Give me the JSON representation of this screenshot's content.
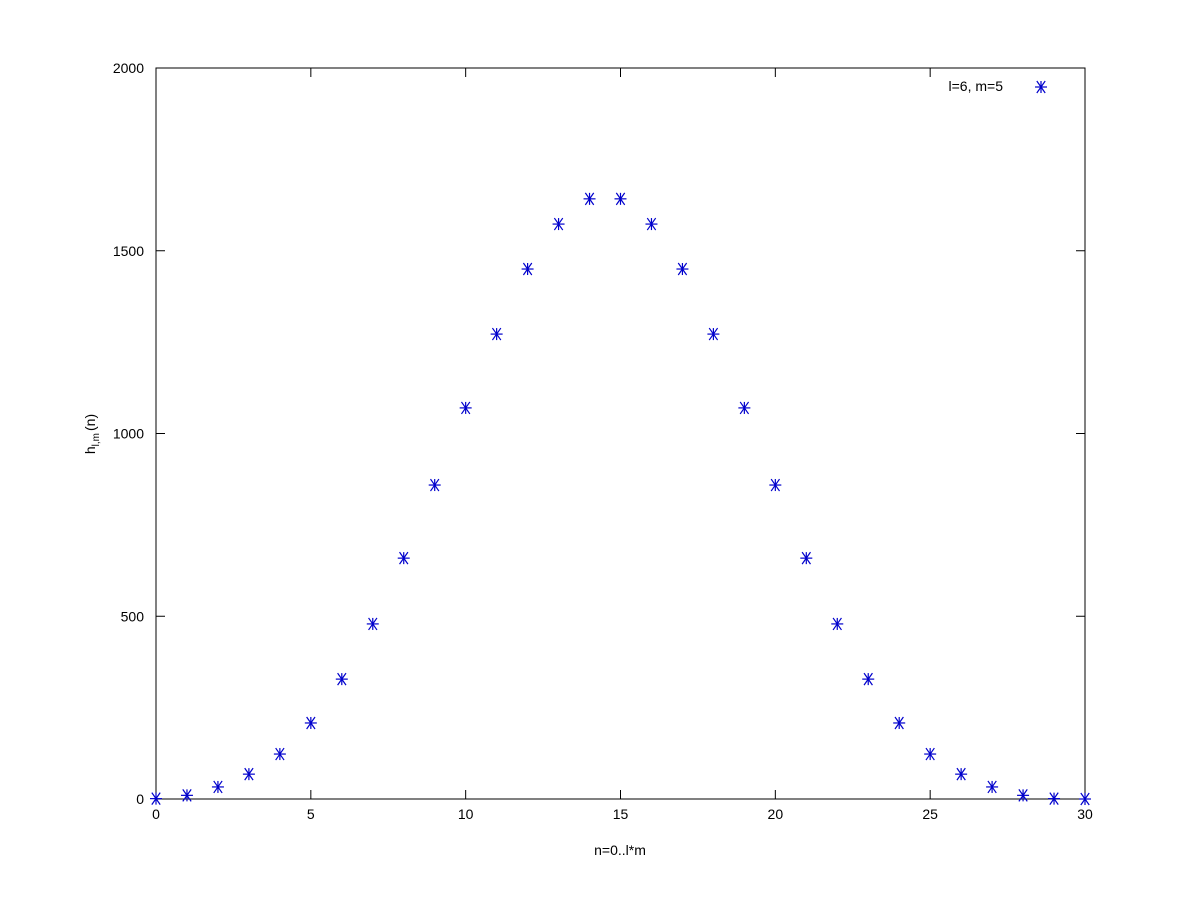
{
  "chart_data": {
    "type": "scatter",
    "title": "",
    "xlabel": "n=0..l*m",
    "ylabel": {
      "base": "h",
      "sub": "l,m",
      "suffix": "(n)"
    },
    "xlim": [
      0,
      30
    ],
    "ylim": [
      0,
      2000
    ],
    "xticks": [
      0,
      5,
      10,
      15,
      20,
      25,
      30
    ],
    "yticks": [
      0,
      500,
      1000,
      1500,
      2000
    ],
    "grid": false,
    "legend_placement": "top-right",
    "series": [
      {
        "name": "l=6, m=5",
        "marker": "asterisk",
        "color": "#0000cc",
        "x": [
          0,
          1,
          2,
          3,
          4,
          5,
          6,
          7,
          8,
          9,
          10,
          11,
          12,
          13,
          14,
          15,
          16,
          17,
          18,
          19,
          20,
          21,
          22,
          23,
          24,
          25,
          26,
          27,
          28,
          29,
          30
        ],
        "y": [
          1,
          10,
          33,
          68,
          123,
          208,
          328,
          479,
          659,
          859,
          1070,
          1272,
          1450,
          1573,
          1642,
          1642,
          1573,
          1450,
          1272,
          1070,
          859,
          659,
          479,
          328,
          208,
          123,
          68,
          33,
          10,
          1,
          0
        ]
      }
    ]
  }
}
